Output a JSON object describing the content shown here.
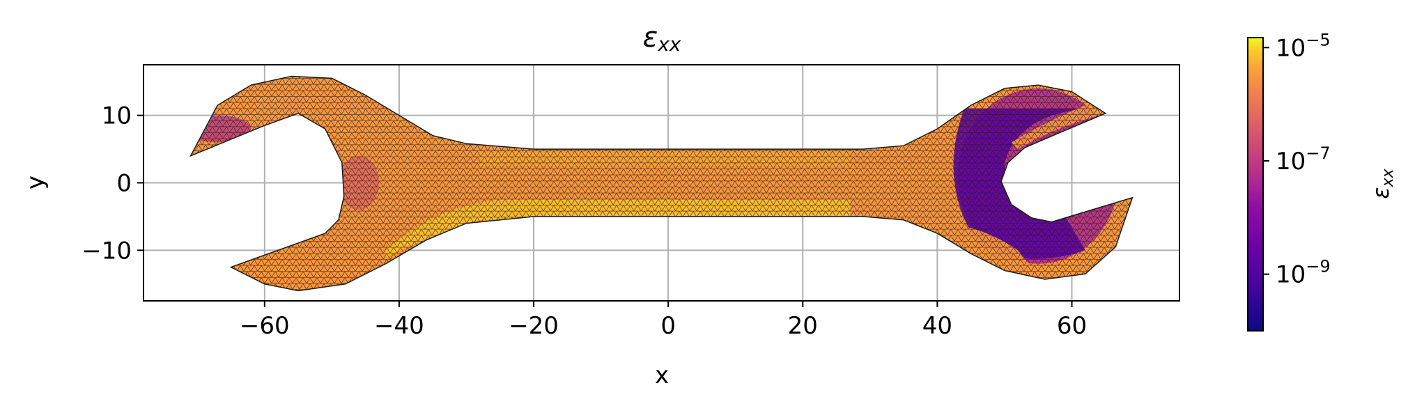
{
  "chart_data": {
    "type": "heatmap",
    "title": "ε_xx",
    "title_main": "ε",
    "title_sub": "xx",
    "xlabel": "x",
    "ylabel": "y",
    "xlim": [
      -78,
      76
    ],
    "ylim": [
      -17.5,
      17.5
    ],
    "xticks": [
      -60,
      -40,
      -20,
      0,
      20,
      40,
      60
    ],
    "xtick_labels": [
      "−60",
      "−40",
      "−20",
      "0",
      "20",
      "40",
      "60"
    ],
    "yticks": [
      -10,
      0,
      10
    ],
    "ytick_labels": [
      "−10",
      "0",
      "10"
    ],
    "grid": true,
    "colormap": "plasma",
    "colorbar": {
      "label": "ε_xx",
      "label_main": "ε",
      "label_sub": "xx",
      "scale": "log",
      "range": [
        1e-10,
        1.5e-05
      ],
      "ticks": [
        {
          "value": 1e-05,
          "base": "10",
          "exp": "−5"
        },
        {
          "value": 1e-07,
          "base": "10",
          "exp": "−7"
        },
        {
          "value": 1e-09,
          "base": "10",
          "exp": "−9"
        }
      ]
    },
    "shape": {
      "description_values": "wrench outline in data units",
      "outline": [
        [
          -71,
          4
        ],
        [
          -60,
          8.5
        ],
        [
          -55,
          10.3
        ],
        [
          -51,
          8
        ],
        [
          -48.5,
          3
        ],
        [
          -48.2,
          -2
        ],
        [
          -49,
          -5.5
        ],
        [
          -51,
          -7.5
        ],
        [
          -65,
          -12.5
        ],
        [
          -60,
          -15
        ],
        [
          -55,
          -16
        ],
        [
          -48,
          -15
        ],
        [
          -42,
          -12
        ],
        [
          -36,
          -8.5
        ],
        [
          -30,
          -6
        ],
        [
          -20,
          -5
        ],
        [
          29,
          -5
        ],
        [
          35,
          -5.5
        ],
        [
          40,
          -7.5
        ],
        [
          45,
          -10.5
        ],
        [
          50,
          -13
        ],
        [
          56,
          -14.3
        ],
        [
          62,
          -13.5
        ],
        [
          66.5,
          -9.5
        ],
        [
          69,
          -2.2
        ],
        [
          57,
          -5.8
        ],
        [
          54,
          -5.2
        ],
        [
          51,
          -3.2
        ],
        [
          49.5,
          0.2
        ],
        [
          50.5,
          3
        ],
        [
          53,
          5.2
        ],
        [
          56,
          6.5
        ],
        [
          65,
          10.3
        ],
        [
          60,
          13.5
        ],
        [
          55,
          14.5
        ],
        [
          50,
          14
        ],
        [
          45,
          11.5
        ],
        [
          40,
          8
        ],
        [
          35,
          5.5
        ],
        [
          29,
          5
        ],
        [
          -20,
          5
        ],
        [
          -30,
          5.8
        ],
        [
          -35,
          7
        ],
        [
          -40,
          10
        ],
        [
          -45,
          13
        ],
        [
          -50,
          15.5
        ],
        [
          -56,
          15.8
        ],
        [
          -62,
          14.5
        ],
        [
          -67,
          11.5
        ]
      ]
    },
    "field_regions": [
      {
        "name": "body",
        "level": 3e-06
      },
      {
        "name": "shaft-low-band",
        "level": 8e-06,
        "range_x": [
          -28,
          27
        ],
        "range_y": [
          -5,
          -2
        ]
      },
      {
        "name": "neck-left-low",
        "level": 6e-06,
        "range_x": [
          -42,
          -28
        ],
        "range_y": [
          -8,
          -2
        ]
      },
      {
        "name": "right-head-ring",
        "level": 1.5e-09
      },
      {
        "name": "right-head-mid",
        "level": 4e-08
      },
      {
        "name": "left-jaw-tip",
        "level": 5e-08
      },
      {
        "name": "left-slot-edge",
        "level": 3e-07
      }
    ]
  }
}
